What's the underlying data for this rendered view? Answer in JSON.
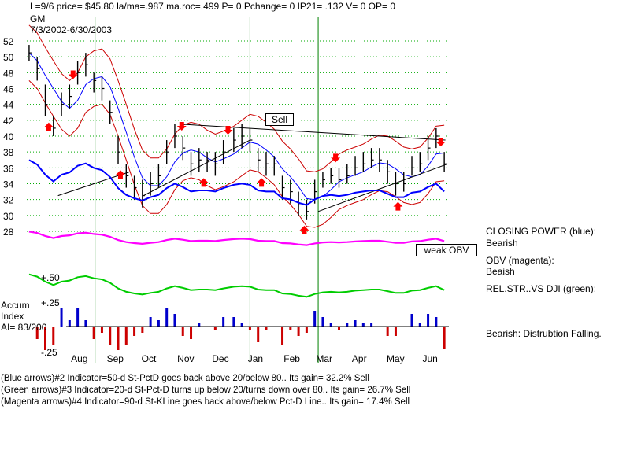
{
  "header": {
    "stats_line": "L=9/6  price= $45.80  la/ma=.987  ma.roc=.499 P=  0 Pchange=  0 IP21= .132 V= 0 OP= 0",
    "symbol": "GM",
    "date_range": "7/3/2002-6/30/2003"
  },
  "side_labels": {
    "closing_power": "CLOSING POWER (blue):",
    "closing_power_status": "Bearish",
    "obv": "OBV (magenta):",
    "obv_status": "Beaish",
    "relstr": "REL.STR..VS DJI (green):",
    "accum_status": "Bearish: Distrubtion Falling."
  },
  "annotations": {
    "sell": "Sell",
    "weak_obv": "weak OBV"
  },
  "accum": {
    "label_line1": "Accum",
    "label_line2": "Index",
    "label_line3": "AI= 83/200",
    "level_top": "+.50",
    "level_mid": "+.25",
    "level_bottom": "-.25"
  },
  "footer": {
    "line1": "(Blue arrows)#2 Indicator=50-d St-PctD goes back above 20/below 80..  Its gain= 32.2% Sell",
    "line2": "(Green arrows)#3 Indicator=20-d St-Pct-D turns up below 20/turns down over 80..  Its gain= 26.7% Sell",
    "line3": "(Magenta arrows)#4 Indicator=90-d St-KLine goes back above/below Pct-D Line..  Its gain= 17.4% Sell"
  },
  "colors": {
    "price_bars": "#000000",
    "closing_power": "#0000ff",
    "obv": "#ff00ff",
    "relative_strength": "#00cc00",
    "bands": "#cc0000",
    "ma_blue": "#0000ff",
    "grid": "#00aa00",
    "vertical_lines": "#008000",
    "accum_positive": "#0000cc",
    "accum_negative": "#cc0000",
    "arrow_sell": "#ff0000",
    "arrow_buy": "#ff0000"
  },
  "chart_data": {
    "type": "line",
    "title": "GM",
    "x_tick_labels": [
      "Aug",
      "Sep",
      "Oct",
      "Nov",
      "Dec",
      "Jan",
      "Feb",
      "Mar",
      "Apr",
      "May",
      "Jun"
    ],
    "y_tick_labels": [
      "52",
      "50",
      "48",
      "46",
      "44",
      "42",
      "40",
      "38",
      "36",
      "34",
      "32",
      "30",
      "28"
    ],
    "ylim": [
      28,
      52
    ],
    "grid": true,
    "price_series": {
      "name": "GM price (daily high-low bars)",
      "x": [
        "2002-07-03",
        "2002-07-10",
        "2002-07-17",
        "2002-07-24",
        "2002-07-31",
        "2002-08-07",
        "2002-08-14",
        "2002-08-21",
        "2002-08-28",
        "2002-09-04",
        "2002-09-11",
        "2002-09-18",
        "2002-09-25",
        "2002-10-02",
        "2002-10-09",
        "2002-10-16",
        "2002-10-23",
        "2002-10-30",
        "2002-11-06",
        "2002-11-13",
        "2002-11-20",
        "2002-11-27",
        "2002-12-04",
        "2002-12-11",
        "2002-12-18",
        "2002-12-27",
        "2003-01-03",
        "2003-01-10",
        "2003-01-17",
        "2003-01-24",
        "2003-01-31",
        "2003-02-07",
        "2003-02-14",
        "2003-02-21",
        "2003-02-28",
        "2003-03-07",
        "2003-03-14",
        "2003-03-21",
        "2003-03-28",
        "2003-04-04",
        "2003-04-11",
        "2003-04-18",
        "2003-04-25",
        "2003-05-02",
        "2003-05-09",
        "2003-05-16",
        "2003-05-23",
        "2003-05-30",
        "2003-06-06",
        "2003-06-13",
        "2003-06-20",
        "2003-06-27"
      ],
      "close": [
        50.5,
        48.5,
        44,
        41,
        44,
        45,
        48,
        49,
        47,
        46,
        43,
        38,
        35,
        33.5,
        32.5,
        34,
        35,
        38,
        40,
        38.5,
        36.5,
        37,
        37,
        36.5,
        38,
        39.5,
        40,
        39.5,
        37,
        36.5,
        36.5,
        33.5,
        33,
        31.5,
        30.5,
        33,
        34.5,
        35,
        34.5,
        35,
        36,
        36.5,
        37,
        37,
        35.5,
        34,
        34,
        36,
        36.5,
        38.5,
        40,
        36.5
      ],
      "high": [
        51.5,
        50,
        46.5,
        42.5,
        45.5,
        46.5,
        49.5,
        50.5,
        48,
        47.5,
        44.5,
        40,
        36.5,
        35,
        34.5,
        35.5,
        36.5,
        39.5,
        41.5,
        40,
        38,
        38.5,
        38,
        38,
        39.5,
        41,
        41.5,
        41,
        38.5,
        38,
        37.5,
        35,
        34.5,
        33,
        32,
        34.5,
        35.5,
        36,
        36,
        36.5,
        37.5,
        38,
        38.5,
        38.5,
        37,
        35.5,
        35.5,
        37.5,
        38,
        40,
        41,
        38
      ],
      "low": [
        49.5,
        47,
        42.5,
        40,
        42.5,
        43.5,
        46.5,
        47.5,
        45.5,
        44.5,
        41.5,
        36.5,
        33.5,
        32,
        31,
        32.5,
        33.5,
        36.5,
        38.5,
        37,
        35,
        35.5,
        35.5,
        35,
        36.5,
        38,
        38.5,
        38,
        35.5,
        35,
        35,
        32,
        31.5,
        30,
        29.5,
        31.5,
        33.5,
        34,
        33.5,
        34,
        35,
        35.5,
        36,
        35.5,
        34,
        32.5,
        33,
        35,
        35.5,
        37,
        38.5,
        35.5
      ]
    },
    "arrows": [
      {
        "x": "2002-08-10",
        "direction": "down"
      },
      {
        "x": "2002-07-20",
        "direction": "up"
      },
      {
        "x": "2002-09-20",
        "direction": "up"
      },
      {
        "x": "2002-11-12",
        "direction": "down"
      },
      {
        "x": "2002-12-22",
        "direction": "down"
      },
      {
        "x": "2002-12-01",
        "direction": "up"
      },
      {
        "x": "2003-01-20",
        "direction": "up"
      },
      {
        "x": "2003-02-26",
        "direction": "up"
      },
      {
        "x": "2003-03-25",
        "direction": "down"
      },
      {
        "x": "2003-05-18",
        "direction": "up"
      },
      {
        "x": "2003-06-24",
        "direction": "down"
      }
    ]
  }
}
